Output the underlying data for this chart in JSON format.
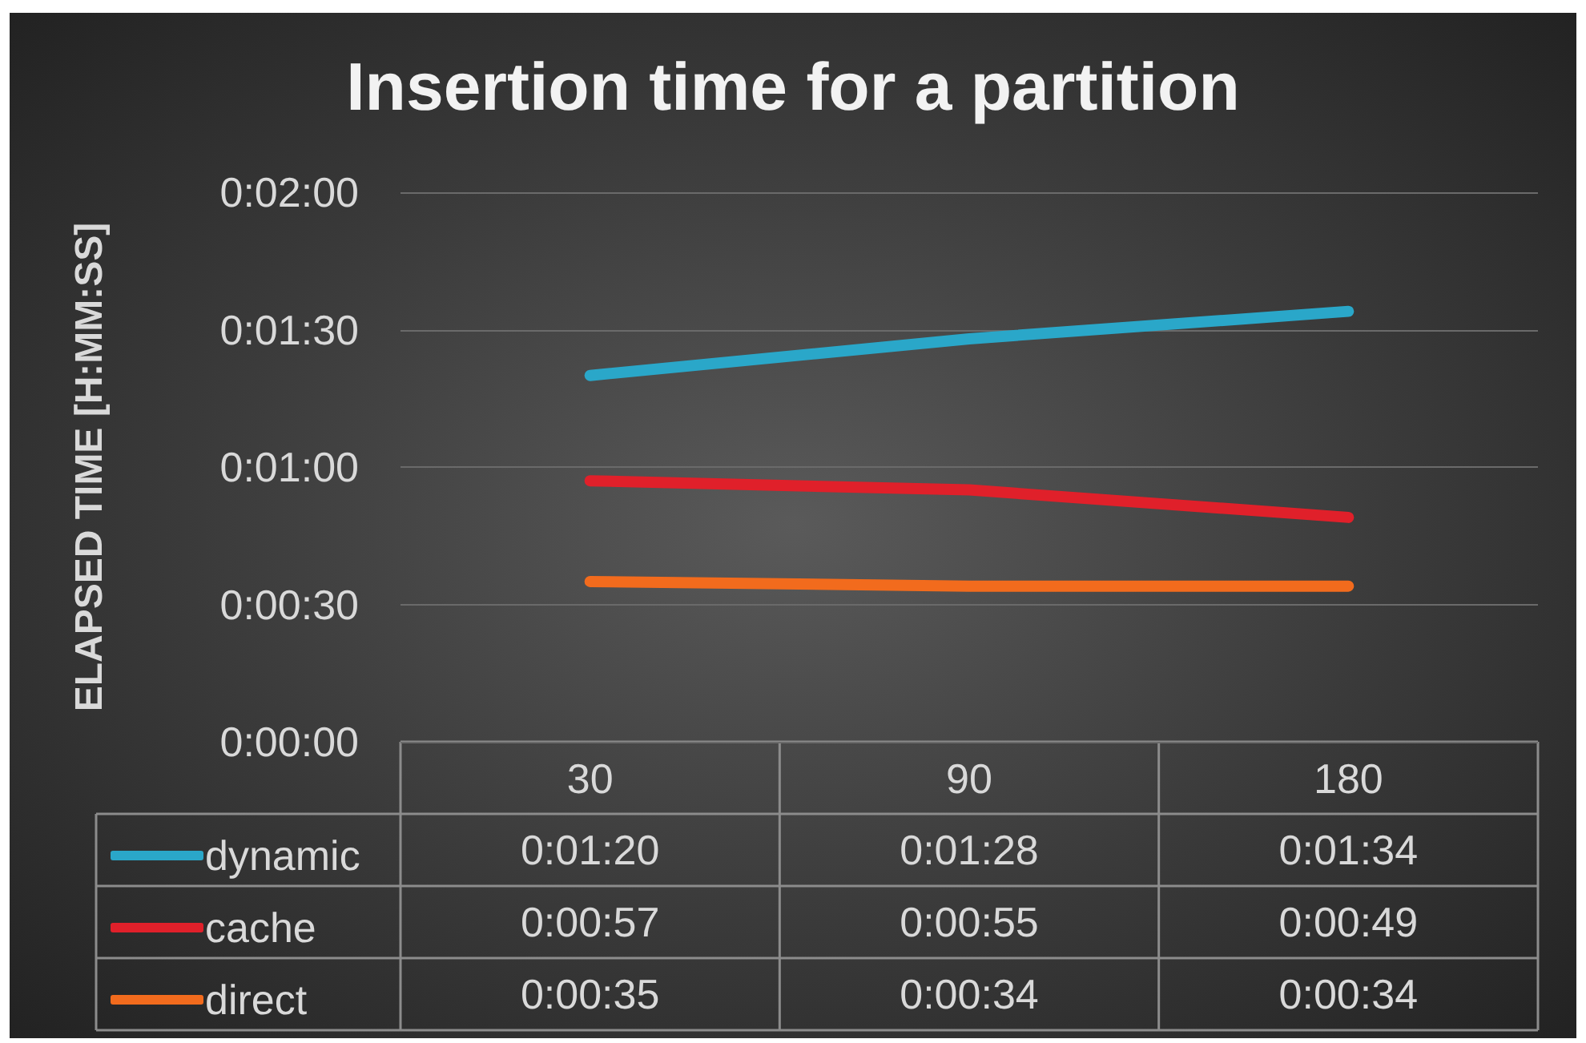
{
  "chart_data": {
    "type": "line",
    "title": "Insertion time for a partition",
    "ylabel": "ELAPSED TIME [H:MM:SS]",
    "categories": [
      "30",
      "90",
      "180"
    ],
    "series": [
      {
        "name": "dynamic",
        "color": "#2aa7c9",
        "values": [
          80,
          88,
          94
        ],
        "value_labels": [
          "0:01:20",
          "0:01:28",
          "0:01:34"
        ]
      },
      {
        "name": "cache",
        "color": "#e0202a",
        "values": [
          57,
          55,
          49
        ],
        "value_labels": [
          "0:00:57",
          "0:00:55",
          "0:00:49"
        ]
      },
      {
        "name": "direct",
        "color": "#f26b1d",
        "values": [
          35,
          34,
          34
        ],
        "value_labels": [
          "0:00:35",
          "0:00:34",
          "0:00:34"
        ]
      }
    ],
    "ylim": [
      0,
      120
    ],
    "yticks": [
      {
        "value": 0,
        "label": "0:00:00"
      },
      {
        "value": 30,
        "label": "0:00:30"
      },
      {
        "value": 60,
        "label": "0:01:00"
      },
      {
        "value": 90,
        "label": "0:01:30"
      },
      {
        "value": 120,
        "label": "0:02:00"
      }
    ],
    "grid": "y",
    "legend": "bottom left",
    "marker": "none",
    "line_style": "solid"
  }
}
